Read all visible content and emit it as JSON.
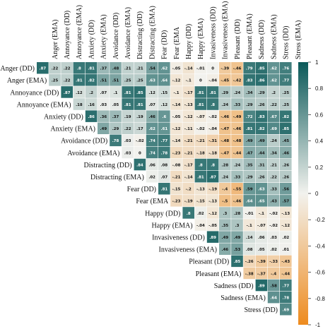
{
  "chart_data": {
    "type": "heatmap",
    "title": "",
    "layout": "upper-triangle",
    "labels": [
      "Anger (DD)",
      "Anger (EMA)",
      "Annoyance (DD)",
      "Annoyance (EMA)",
      "Anxiety (DD)",
      "Anxiety (EMA)",
      "Avoidance (DD)",
      "Avoidance (EMA)",
      "Distracting (DD)",
      "Distracting (EMA)",
      "Fear (DD)",
      "Fear (EMA",
      "Happy (DD)",
      "Happy (EMA)",
      "Invasiveness (DD)",
      "Invasiveness (EMA)",
      "Pleasant (DD)",
      "Pleasant (EMA)",
      "Sadness (DD)",
      "Sadness (EMA)",
      "Stress (DD)",
      "Stress (EMA)"
    ],
    "col_labels": [
      "Anger (EMA)",
      "Annoyance (DD)",
      "Annoyance (EMA)",
      "Anxiety (DD)",
      "Anxiety (EMA)",
      "Avoidance (DD)",
      "Avoidance (EMA)",
      "Distracting (DD)",
      "Distracting (EMA)",
      "Fear (DD)",
      "Fear (EMA",
      "Happy (DD)",
      "Happy (EMA)",
      "Invasiveness (DD)",
      "Invasiveness (EMA)",
      "Pleasant (DD)",
      "Pleasant (EMA)",
      "Sadness (DD)",
      "Sadness (EMA)",
      "Stress (DD)",
      "Stress (EMA)"
    ],
    "row_labels": [
      "Anger (DD)",
      "Anger (EMA)",
      "Annoyance (DD)",
      "Annoyance (EMA)",
      "Anxiety (DD)",
      "Anxiety (EMA)",
      "Avoidance (DD)",
      "Avoidance (EMA)",
      "Distracting (DD)",
      "Distracting (EMA)",
      "Fear (DD)",
      "Fear (EMA",
      "Happy (DD)",
      "Happy (EMA)",
      "Invasiveness (DD)",
      "Invasiveness (EMA)",
      "Pleasant (DD)",
      "Pleasant (EMA)",
      "Sadness (DD)",
      "Sadness (EMA)",
      "Stress (DD)"
    ],
    "rows": [
      [
        0.87,
        0.22,
        0.22,
        0.8,
        0.81,
        0.37,
        0.48,
        0.21,
        0.21,
        0.54,
        0.62,
        -0.05,
        -0.14,
        -0.01,
        0,
        -0.39,
        -0.46,
        0.79,
        0.85,
        0.62,
        0.76
      ],
      [
        0.25,
        0.22,
        0.81,
        0.82,
        0.51,
        0.51,
        0.25,
        0.25,
        0.63,
        0.64,
        -0.12,
        -0.1,
        0,
        -0.04,
        -0.45,
        -0.42,
        0.83,
        0.86,
        0.62,
        0.77
      ],
      [
        0.87,
        0.12,
        0.2,
        0.07,
        0.1,
        0.81,
        0.85,
        0.12,
        0.15,
        -0.1,
        -0.17,
        0.81,
        0.81,
        0.29,
        0.24,
        0.34,
        0.29,
        0.2,
        0.25
      ],
      [
        0.18,
        0.16,
        0.03,
        0.05,
        0.81,
        0.81,
        0.07,
        0.12,
        -0.14,
        -0.13,
        0.81,
        0.8,
        0.24,
        0.33,
        0.29,
        0.26,
        0.22,
        0.25
      ],
      [
        0.86,
        0.36,
        0.37,
        0.19,
        0.19,
        0.46,
        0.6,
        -0.05,
        -0.12,
        -0.07,
        -0.02,
        -0.46,
        -0.49,
        0.72,
        0.83,
        0.67,
        0.82
      ],
      [
        0.49,
        0.29,
        0.22,
        0.17,
        0.62,
        0.61,
        -0.12,
        -0.11,
        -0.02,
        -0.04,
        -0.47,
        -0.46,
        0.81,
        0.82,
        0.69,
        0.85
      ],
      [
        0.78,
        0.03,
        -0.02,
        0.74,
        0.77,
        -0.14,
        -0.21,
        -0.21,
        -0.31,
        -0.48,
        -0.48,
        0.49,
        0.49,
        0.24,
        0.45
      ],
      [
        0.03,
        0,
        0.74,
        0.78,
        -0.23,
        -0.21,
        -0.18,
        -0.18,
        -0.47,
        -0.44,
        0.47,
        0.44,
        0.34,
        0.46
      ],
      [
        0.84,
        0.06,
        0.08,
        -0.08,
        -0.17,
        0.8,
        0.8,
        0.28,
        0.24,
        0.35,
        0.31,
        0.21,
        0.26
      ],
      [
        0.02,
        0.07,
        -0.21,
        -0.14,
        0.81,
        0.87,
        0.24,
        0.33,
        0.29,
        0.26,
        0.22,
        0.26
      ],
      [
        0.81,
        -0.15,
        -0.2,
        -0.13,
        -0.19,
        -0.4,
        -0.55,
        0.59,
        0.63,
        0.33,
        0.56
      ],
      [
        -0.23,
        -0.19,
        -0.15,
        -0.13,
        -0.5,
        -0.46,
        0.64,
        0.65,
        0.43,
        0.57
      ],
      [
        0.8,
        0.02,
        -0.12,
        0.3,
        0.28,
        -0.01,
        -0.1,
        -0.02,
        -0.13
      ],
      [
        -0.04,
        -0.05,
        0.35,
        0.3,
        -0.1,
        -0.07,
        -0.02,
        -0.12
      ],
      [
        0.89,
        0.49,
        0.49,
        0.14,
        0.06,
        0.03,
        0.02
      ],
      [
        0.46,
        0.53,
        0.08,
        0.05,
        0.02,
        0.01
      ],
      [
        0.85,
        -0.26,
        -0.39,
        -0.33,
        -0.43
      ],
      [
        -0.38,
        -0.37,
        -0.4,
        -0.44
      ],
      [
        0.89,
        0.58,
        0.77
      ],
      [
        0.64,
        0.78
      ],
      [
        0.69
      ]
    ],
    "colorbar": {
      "range": [
        -1,
        1
      ],
      "ticks": [
        "1",
        "0.8",
        "0.6",
        "0.4",
        "0.2",
        "0",
        "-0.2",
        "-0.4",
        "-0.6",
        "-0.8",
        "-1"
      ],
      "colors": {
        "positive": "#0a5959",
        "zero": "#f2f2ee",
        "negative": "#ee8b1e"
      }
    }
  }
}
